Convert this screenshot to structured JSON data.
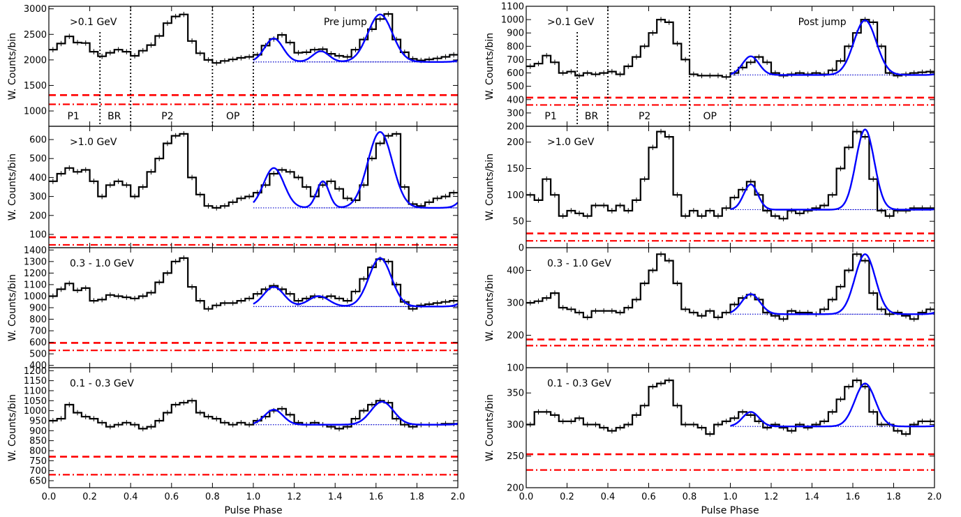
{
  "figure": {
    "xlabel": "Pulse Phase",
    "ylabel": "W. Counts/bin",
    "x_ticks": [
      "0.0",
      "0.2",
      "0.4",
      "0.6",
      "0.8",
      "1.0",
      "1.2",
      "1.4",
      "1.6",
      "1.8",
      "2.0"
    ]
  },
  "colors": {
    "histogram": "#000000",
    "fit": "#0000ff",
    "baseline": "#0000cc",
    "background": "#ff0000"
  },
  "chart_data": [
    {
      "type": "line",
      "column": "left",
      "row": 0,
      "title": "Pre jump",
      "label": ">0.1 GeV",
      "xlim": [
        0,
        2
      ],
      "ylim": [
        700,
        3050
      ],
      "yticks": [
        "1000",
        "1500",
        "2000",
        "2500",
        "3000"
      ],
      "ytick_values": [
        1000,
        1500,
        2000,
        2500,
        3000
      ],
      "region_lines": [
        0.25,
        0.4,
        0.8,
        1.0
      ],
      "region_labels": [
        "P1",
        "BR",
        "P2",
        "OP"
      ],
      "region_label_x": [
        0.12,
        0.32,
        0.58,
        0.9
      ],
      "bkg_dashed": 1310,
      "bkg_dashdot": 1130,
      "baseline": 1960,
      "fit_peaks": [
        [
          1.1,
          460,
          0.045
        ],
        [
          1.33,
          210,
          0.04
        ],
        [
          1.62,
          930,
          0.06
        ]
      ],
      "fit_shift": 0.05,
      "hist_y": [
        2200,
        2320,
        2460,
        2340,
        2330,
        2160,
        2070,
        2140,
        2200,
        2160,
        2080,
        2180,
        2290,
        2470,
        2720,
        2850,
        2890,
        2370,
        2130,
        2000,
        1940,
        1980,
        2010,
        2040,
        2060,
        2100,
        2280,
        2410,
        2490,
        2340,
        2140,
        2150,
        2200,
        2210,
        2120,
        2080,
        2060,
        2200,
        2400,
        2600,
        2800,
        2900,
        2400,
        2150,
        2020,
        1990,
        2010,
        2030,
        2060,
        2100
      ]
    },
    {
      "type": "line",
      "column": "left",
      "row": 1,
      "label": ">1.0 GeV",
      "xlim": [
        0,
        2
      ],
      "ylim": [
        30,
        670
      ],
      "yticks": [
        "100",
        "200",
        "300",
        "400",
        "500",
        "600"
      ],
      "ytick_values": [
        100,
        200,
        300,
        400,
        500,
        600
      ],
      "bkg_dashed": 85,
      "bkg_dashdot": 45,
      "baseline": 240,
      "fit_peaks": [
        [
          1.1,
          210,
          0.05
        ],
        [
          1.34,
          140,
          0.03
        ],
        [
          1.62,
          400,
          0.06
        ]
      ],
      "fit_shift": 0.05,
      "hist_y": [
        380,
        420,
        450,
        430,
        440,
        380,
        300,
        360,
        380,
        360,
        300,
        350,
        430,
        500,
        580,
        620,
        630,
        400,
        310,
        250,
        240,
        250,
        270,
        290,
        300,
        320,
        360,
        420,
        440,
        430,
        400,
        350,
        300,
        360,
        380,
        340,
        290,
        280,
        360,
        500,
        580,
        620,
        630,
        350,
        260,
        250,
        270,
        290,
        300,
        320
      ]
    },
    {
      "type": "line",
      "column": "left",
      "row": 2,
      "label": "0.3 - 1.0 GeV",
      "xlim": [
        0,
        2
      ],
      "ylim": [
        380,
        1420
      ],
      "yticks": [
        "400",
        "500",
        "600",
        "700",
        "800",
        "900",
        "1000",
        "1100",
        "1200",
        "1300",
        "1400"
      ],
      "ytick_values": [
        400,
        500,
        600,
        700,
        800,
        900,
        1000,
        1100,
        1200,
        1300,
        1400
      ],
      "bkg_dashed": 595,
      "bkg_dashdot": 530,
      "baseline": 910,
      "fit_peaks": [
        [
          1.1,
          170,
          0.05
        ],
        [
          1.32,
          90,
          0.05
        ],
        [
          1.62,
          420,
          0.055
        ]
      ],
      "fit_shift": 0.05,
      "hist_y": [
        1000,
        1060,
        1110,
        1050,
        1070,
        960,
        970,
        1010,
        1000,
        990,
        980,
        1000,
        1030,
        1120,
        1200,
        1300,
        1330,
        1080,
        960,
        890,
        920,
        940,
        940,
        960,
        980,
        1020,
        1060,
        1090,
        1060,
        1020,
        960,
        980,
        1000,
        990,
        1000,
        980,
        960,
        1040,
        1150,
        1250,
        1320,
        1300,
        1100,
        950,
        890,
        920,
        930,
        940,
        950,
        960
      ]
    },
    {
      "type": "line",
      "column": "left",
      "row": 3,
      "label": "0.1 - 0.3 GeV",
      "xlim": [
        0,
        2
      ],
      "ylim": [
        615,
        1215
      ],
      "yticks": [
        "650",
        "700",
        "750",
        "800",
        "850",
        "900",
        "950",
        "1000",
        "1050",
        "1100",
        "1150",
        "1200"
      ],
      "ytick_values": [
        650,
        700,
        750,
        800,
        850,
        900,
        950,
        1000,
        1050,
        1100,
        1150,
        1200
      ],
      "bkg_dashed": 770,
      "bkg_dashdot": 680,
      "baseline": 930,
      "fit_peaks": [
        [
          1.1,
          75,
          0.045
        ],
        [
          1.63,
          115,
          0.055
        ]
      ],
      "fit_shift": 0.05,
      "hist_y": [
        950,
        960,
        1030,
        990,
        970,
        960,
        940,
        920,
        930,
        940,
        930,
        910,
        920,
        950,
        990,
        1030,
        1040,
        1050,
        990,
        970,
        960,
        940,
        930,
        940,
        930,
        950,
        970,
        1000,
        1010,
        980,
        940,
        930,
        940,
        930,
        920,
        910,
        920,
        960,
        1000,
        1030,
        1050,
        1040,
        960,
        930,
        920,
        930,
        930,
        930,
        935,
        935
      ]
    },
    {
      "type": "line",
      "column": "right",
      "row": 0,
      "title": "Post jump",
      "label": ">0.1 GeV",
      "xlim": [
        0,
        2
      ],
      "ylim": [
        200,
        1100
      ],
      "yticks": [
        "200",
        "300",
        "400",
        "500",
        "600",
        "700",
        "800",
        "900",
        "1000",
        "1100"
      ],
      "ytick_values": [
        200,
        300,
        400,
        500,
        600,
        700,
        800,
        900,
        1000,
        1100
      ],
      "region_lines": [
        0.25,
        0.4,
        0.8,
        1.0
      ],
      "region_labels": [
        "P1",
        "BR",
        "P2",
        "OP"
      ],
      "region_label_x": [
        0.12,
        0.32,
        0.58,
        0.9
      ],
      "bkg_dashed": 415,
      "bkg_dashdot": 360,
      "baseline": 585,
      "fit_peaks": [
        [
          1.1,
          140,
          0.04
        ],
        [
          1.66,
          410,
          0.055
        ]
      ],
      "fit_shift": 0.05,
      "hist_y": [
        650,
        670,
        730,
        680,
        600,
        610,
        580,
        600,
        590,
        600,
        610,
        590,
        650,
        720,
        800,
        900,
        1000,
        980,
        820,
        700,
        590,
        580,
        580,
        580,
        570,
        600,
        640,
        680,
        720,
        680,
        600,
        580,
        590,
        600,
        590,
        600,
        590,
        620,
        690,
        800,
        900,
        1000,
        980,
        800,
        600,
        580,
        590,
        600,
        605,
        610
      ]
    },
    {
      "type": "line",
      "column": "right",
      "row": 1,
      "label": ">1.0 GeV",
      "xlim": [
        0,
        2
      ],
      "ylim": [
        0,
        230
      ],
      "yticks": [
        "0",
        "50",
        "100",
        "150",
        "200"
      ],
      "ytick_values": [
        0,
        50,
        100,
        150,
        200
      ],
      "bkg_dashed": 27,
      "bkg_dashdot": 13,
      "baseline": 72,
      "fit_peaks": [
        [
          1.1,
          48,
          0.035
        ],
        [
          1.66,
          152,
          0.045
        ]
      ],
      "fit_shift": 0.05,
      "hist_y": [
        100,
        90,
        130,
        100,
        60,
        70,
        65,
        60,
        80,
        80,
        70,
        80,
        70,
        90,
        130,
        190,
        220,
        210,
        100,
        60,
        70,
        60,
        70,
        60,
        75,
        95,
        110,
        125,
        100,
        70,
        60,
        55,
        70,
        65,
        70,
        75,
        80,
        100,
        150,
        190,
        220,
        210,
        130,
        70,
        60,
        70,
        70,
        75,
        75,
        75
      ]
    },
    {
      "type": "line",
      "column": "right",
      "row": 2,
      "label": "0.3 - 1.0 GeV",
      "xlim": [
        0,
        2
      ],
      "ylim": [
        100,
        470
      ],
      "yticks": [
        "100",
        "200",
        "300",
        "400"
      ],
      "ytick_values": [
        100,
        200,
        300,
        400
      ],
      "bkg_dashed": 187,
      "bkg_dashdot": 168,
      "baseline": 265,
      "fit_peaks": [
        [
          1.1,
          62,
          0.045
        ],
        [
          1.66,
          185,
          0.05
        ]
      ],
      "fit_shift": 0.05,
      "hist_y": [
        300,
        305,
        315,
        330,
        285,
        280,
        270,
        255,
        275,
        275,
        275,
        270,
        285,
        310,
        360,
        400,
        450,
        430,
        360,
        280,
        270,
        260,
        275,
        255,
        270,
        295,
        315,
        325,
        310,
        270,
        260,
        250,
        275,
        270,
        270,
        265,
        280,
        310,
        350,
        400,
        450,
        430,
        330,
        280,
        265,
        270,
        260,
        250,
        270,
        280
      ]
    },
    {
      "type": "line",
      "column": "right",
      "row": 3,
      "label": "0.1 - 0.3 GeV",
      "xlim": [
        0,
        2
      ],
      "ylim": [
        200,
        390
      ],
      "yticks": [
        "200",
        "250",
        "300",
        "350"
      ],
      "ytick_values": [
        200,
        250,
        300,
        350
      ],
      "bkg_dashed": 253,
      "bkg_dashdot": 228,
      "baseline": 297,
      "fit_peaks": [
        [
          1.1,
          23,
          0.04
        ],
        [
          1.66,
          68,
          0.05
        ]
      ],
      "fit_shift": 0.05,
      "hist_y": [
        300,
        320,
        320,
        315,
        305,
        305,
        310,
        300,
        300,
        295,
        290,
        295,
        300,
        315,
        330,
        360,
        365,
        370,
        330,
        300,
        300,
        295,
        285,
        300,
        305,
        310,
        320,
        315,
        305,
        295,
        300,
        295,
        290,
        300,
        295,
        300,
        305,
        320,
        340,
        360,
        370,
        360,
        320,
        300,
        300,
        290,
        285,
        300,
        305,
        305
      ]
    }
  ]
}
